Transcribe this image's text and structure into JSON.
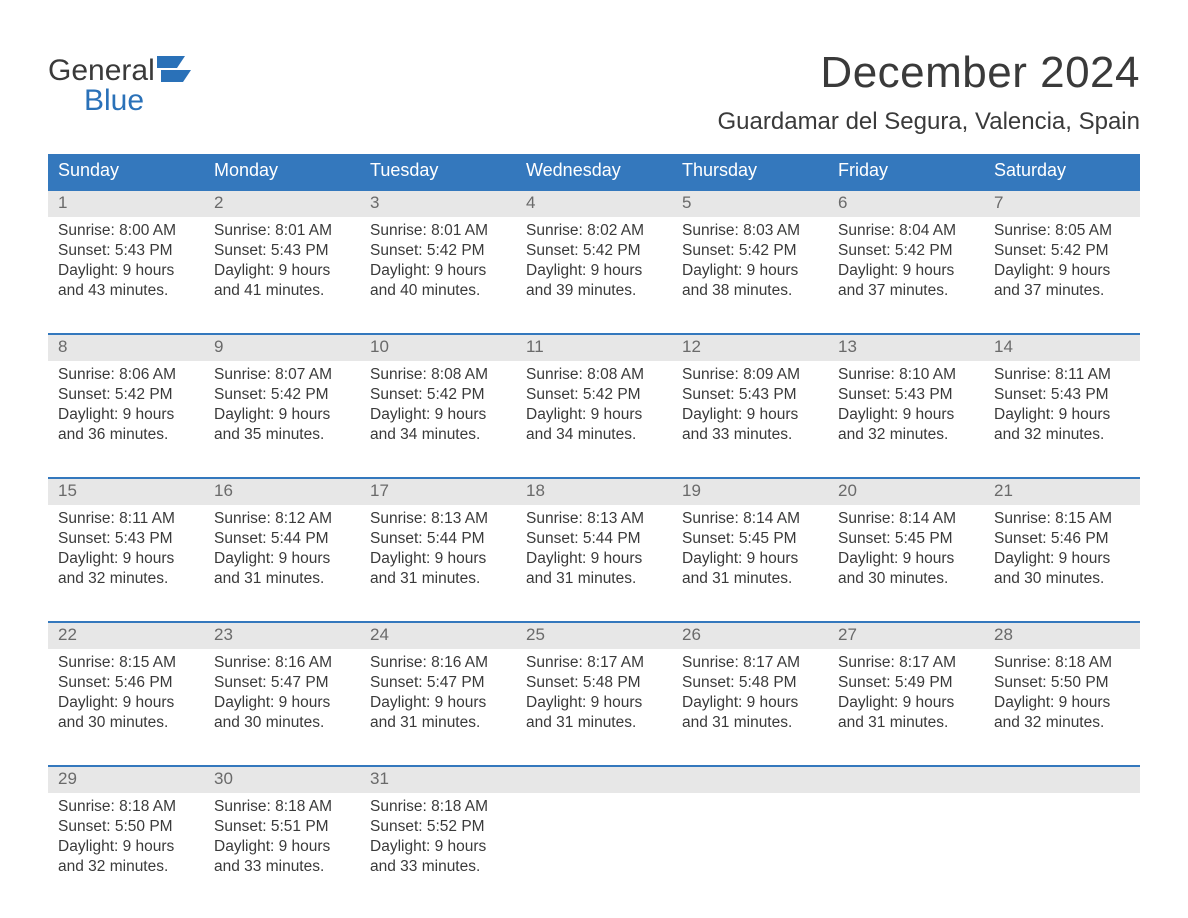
{
  "colors": {
    "header_bg": "#3478bd",
    "header_text": "#ffffff",
    "daynum_bg": "#e7e7e7",
    "daynum_text": "#6a6a6a",
    "body_text": "#3a3a3a",
    "week_border": "#3478bd",
    "logo_blue": "#2a71b8",
    "page_bg": "#ffffff"
  },
  "typography": {
    "month_title_fontsize": 44,
    "location_fontsize": 24,
    "dow_fontsize": 18,
    "daynum_fontsize": 17,
    "cell_fontsize": 15.5,
    "logo_fontsize": 30
  },
  "layout": {
    "columns": 7,
    "type": "month-calendar"
  },
  "logo": {
    "line1": "General",
    "line2": "Blue"
  },
  "title": "December 2024",
  "location": "Guardamar del Segura, Valencia, Spain",
  "days_of_week": [
    "Sunday",
    "Monday",
    "Tuesday",
    "Wednesday",
    "Thursday",
    "Friday",
    "Saturday"
  ],
  "weeks": [
    [
      {
        "d": "1",
        "sr": "Sunrise: 8:00 AM",
        "ss": "Sunset: 5:43 PM",
        "dl1": "Daylight: 9 hours",
        "dl2": "and 43 minutes."
      },
      {
        "d": "2",
        "sr": "Sunrise: 8:01 AM",
        "ss": "Sunset: 5:43 PM",
        "dl1": "Daylight: 9 hours",
        "dl2": "and 41 minutes."
      },
      {
        "d": "3",
        "sr": "Sunrise: 8:01 AM",
        "ss": "Sunset: 5:42 PM",
        "dl1": "Daylight: 9 hours",
        "dl2": "and 40 minutes."
      },
      {
        "d": "4",
        "sr": "Sunrise: 8:02 AM",
        "ss": "Sunset: 5:42 PM",
        "dl1": "Daylight: 9 hours",
        "dl2": "and 39 minutes."
      },
      {
        "d": "5",
        "sr": "Sunrise: 8:03 AM",
        "ss": "Sunset: 5:42 PM",
        "dl1": "Daylight: 9 hours",
        "dl2": "and 38 minutes."
      },
      {
        "d": "6",
        "sr": "Sunrise: 8:04 AM",
        "ss": "Sunset: 5:42 PM",
        "dl1": "Daylight: 9 hours",
        "dl2": "and 37 minutes."
      },
      {
        "d": "7",
        "sr": "Sunrise: 8:05 AM",
        "ss": "Sunset: 5:42 PM",
        "dl1": "Daylight: 9 hours",
        "dl2": "and 37 minutes."
      }
    ],
    [
      {
        "d": "8",
        "sr": "Sunrise: 8:06 AM",
        "ss": "Sunset: 5:42 PM",
        "dl1": "Daylight: 9 hours",
        "dl2": "and 36 minutes."
      },
      {
        "d": "9",
        "sr": "Sunrise: 8:07 AM",
        "ss": "Sunset: 5:42 PM",
        "dl1": "Daylight: 9 hours",
        "dl2": "and 35 minutes."
      },
      {
        "d": "10",
        "sr": "Sunrise: 8:08 AM",
        "ss": "Sunset: 5:42 PM",
        "dl1": "Daylight: 9 hours",
        "dl2": "and 34 minutes."
      },
      {
        "d": "11",
        "sr": "Sunrise: 8:08 AM",
        "ss": "Sunset: 5:42 PM",
        "dl1": "Daylight: 9 hours",
        "dl2": "and 34 minutes."
      },
      {
        "d": "12",
        "sr": "Sunrise: 8:09 AM",
        "ss": "Sunset: 5:43 PM",
        "dl1": "Daylight: 9 hours",
        "dl2": "and 33 minutes."
      },
      {
        "d": "13",
        "sr": "Sunrise: 8:10 AM",
        "ss": "Sunset: 5:43 PM",
        "dl1": "Daylight: 9 hours",
        "dl2": "and 32 minutes."
      },
      {
        "d": "14",
        "sr": "Sunrise: 8:11 AM",
        "ss": "Sunset: 5:43 PM",
        "dl1": "Daylight: 9 hours",
        "dl2": "and 32 minutes."
      }
    ],
    [
      {
        "d": "15",
        "sr": "Sunrise: 8:11 AM",
        "ss": "Sunset: 5:43 PM",
        "dl1": "Daylight: 9 hours",
        "dl2": "and 32 minutes."
      },
      {
        "d": "16",
        "sr": "Sunrise: 8:12 AM",
        "ss": "Sunset: 5:44 PM",
        "dl1": "Daylight: 9 hours",
        "dl2": "and 31 minutes."
      },
      {
        "d": "17",
        "sr": "Sunrise: 8:13 AM",
        "ss": "Sunset: 5:44 PM",
        "dl1": "Daylight: 9 hours",
        "dl2": "and 31 minutes."
      },
      {
        "d": "18",
        "sr": "Sunrise: 8:13 AM",
        "ss": "Sunset: 5:44 PM",
        "dl1": "Daylight: 9 hours",
        "dl2": "and 31 minutes."
      },
      {
        "d": "19",
        "sr": "Sunrise: 8:14 AM",
        "ss": "Sunset: 5:45 PM",
        "dl1": "Daylight: 9 hours",
        "dl2": "and 31 minutes."
      },
      {
        "d": "20",
        "sr": "Sunrise: 8:14 AM",
        "ss": "Sunset: 5:45 PM",
        "dl1": "Daylight: 9 hours",
        "dl2": "and 30 minutes."
      },
      {
        "d": "21",
        "sr": "Sunrise: 8:15 AM",
        "ss": "Sunset: 5:46 PM",
        "dl1": "Daylight: 9 hours",
        "dl2": "and 30 minutes."
      }
    ],
    [
      {
        "d": "22",
        "sr": "Sunrise: 8:15 AM",
        "ss": "Sunset: 5:46 PM",
        "dl1": "Daylight: 9 hours",
        "dl2": "and 30 minutes."
      },
      {
        "d": "23",
        "sr": "Sunrise: 8:16 AM",
        "ss": "Sunset: 5:47 PM",
        "dl1": "Daylight: 9 hours",
        "dl2": "and 30 minutes."
      },
      {
        "d": "24",
        "sr": "Sunrise: 8:16 AM",
        "ss": "Sunset: 5:47 PM",
        "dl1": "Daylight: 9 hours",
        "dl2": "and 31 minutes."
      },
      {
        "d": "25",
        "sr": "Sunrise: 8:17 AM",
        "ss": "Sunset: 5:48 PM",
        "dl1": "Daylight: 9 hours",
        "dl2": "and 31 minutes."
      },
      {
        "d": "26",
        "sr": "Sunrise: 8:17 AM",
        "ss": "Sunset: 5:48 PM",
        "dl1": "Daylight: 9 hours",
        "dl2": "and 31 minutes."
      },
      {
        "d": "27",
        "sr": "Sunrise: 8:17 AM",
        "ss": "Sunset: 5:49 PM",
        "dl1": "Daylight: 9 hours",
        "dl2": "and 31 minutes."
      },
      {
        "d": "28",
        "sr": "Sunrise: 8:18 AM",
        "ss": "Sunset: 5:50 PM",
        "dl1": "Daylight: 9 hours",
        "dl2": "and 32 minutes."
      }
    ],
    [
      {
        "d": "29",
        "sr": "Sunrise: 8:18 AM",
        "ss": "Sunset: 5:50 PM",
        "dl1": "Daylight: 9 hours",
        "dl2": "and 32 minutes."
      },
      {
        "d": "30",
        "sr": "Sunrise: 8:18 AM",
        "ss": "Sunset: 5:51 PM",
        "dl1": "Daylight: 9 hours",
        "dl2": "and 33 minutes."
      },
      {
        "d": "31",
        "sr": "Sunrise: 8:18 AM",
        "ss": "Sunset: 5:52 PM",
        "dl1": "Daylight: 9 hours",
        "dl2": "and 33 minutes."
      },
      null,
      null,
      null,
      null
    ]
  ]
}
